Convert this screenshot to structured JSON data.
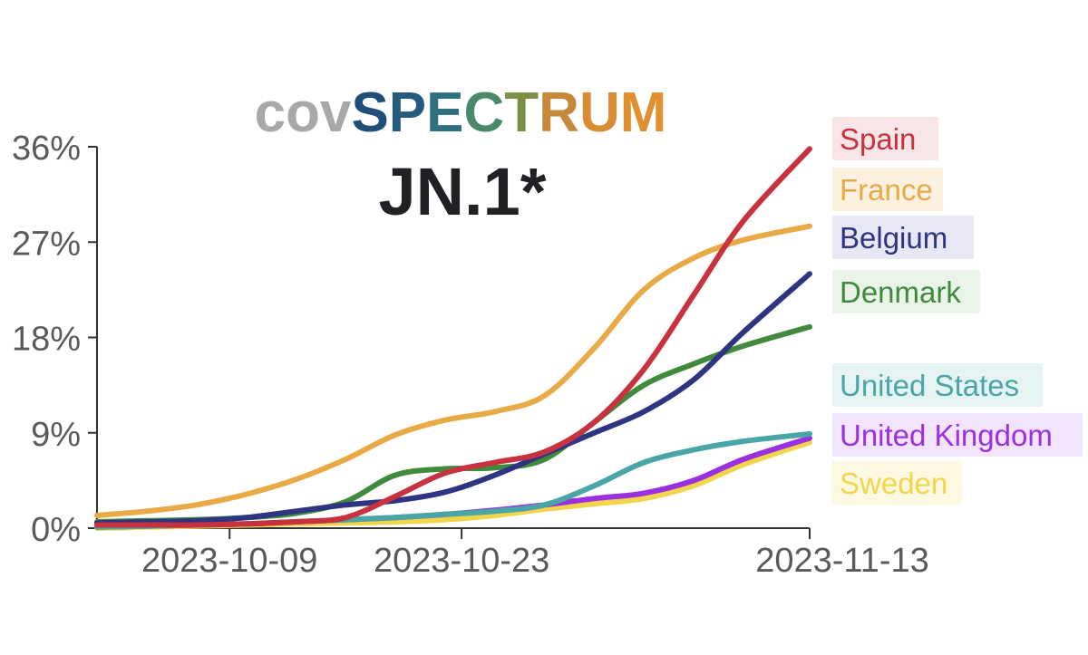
{
  "brand": {
    "parts": [
      {
        "text": "cov",
        "color": "#a8a8a8"
      },
      {
        "text": "S",
        "color": "#1f4e79"
      },
      {
        "text": "P",
        "color": "#245a7e"
      },
      {
        "text": "E",
        "color": "#2e7080"
      },
      {
        "text": "C",
        "color": "#4a8a6a"
      },
      {
        "text": "T",
        "color": "#7a8f45"
      },
      {
        "text": "R",
        "color": "#c48a3a"
      },
      {
        "text": "U",
        "color": "#d98c34"
      },
      {
        "text": "M",
        "color": "#e0902e"
      }
    ]
  },
  "chart_data": {
    "type": "line",
    "title": "JN.1*",
    "xlabel": "",
    "ylabel": "",
    "x_ticks": [
      "2023-10-09",
      "2023-10-23",
      "2023-11-13"
    ],
    "xlim": [
      "2023-10-01",
      "2023-11-13"
    ],
    "y_ticks": [
      "0%",
      "9%",
      "18%",
      "27%",
      "36%"
    ],
    "ylim": [
      0,
      36
    ],
    "grid": false,
    "legend_position": "right",
    "x": [
      "2023-10-01",
      "2023-10-04",
      "2023-10-07",
      "2023-10-10",
      "2023-10-13",
      "2023-10-16",
      "2023-10-19",
      "2023-10-22",
      "2023-10-25",
      "2023-10-28",
      "2023-10-31",
      "2023-11-03",
      "2023-11-06",
      "2023-11-09",
      "2023-11-13"
    ],
    "series": [
      {
        "name": "Spain",
        "color": "#c8323f",
        "label_bg": "#f8e5e7",
        "values": [
          0.3,
          0.3,
          0.3,
          0.4,
          0.6,
          1.0,
          3.0,
          5.2,
          6.2,
          7.2,
          10.0,
          15.0,
          22.0,
          29.0,
          35.8
        ]
      },
      {
        "name": "France",
        "color": "#e9a945",
        "label_bg": "#fcf1e0",
        "values": [
          1.2,
          1.6,
          2.2,
          3.2,
          4.6,
          6.5,
          8.8,
          10.2,
          11.0,
          12.5,
          17.0,
          22.5,
          25.5,
          27.2,
          28.5
        ]
      },
      {
        "name": "Belgium",
        "color": "#2e3481",
        "label_bg": "#e7e8f3",
        "values": [
          0.5,
          0.6,
          0.7,
          1.0,
          1.6,
          2.2,
          2.6,
          3.4,
          5.0,
          7.0,
          9.0,
          11.0,
          14.0,
          18.5,
          24.0
        ]
      },
      {
        "name": "Denmark",
        "color": "#3f8b3b",
        "label_bg": "#e9f3e8",
        "values": [
          0.6,
          0.7,
          0.8,
          1.0,
          1.4,
          2.5,
          5.0,
          5.6,
          5.7,
          6.5,
          10.0,
          13.5,
          15.5,
          17.2,
          19.0
        ]
      },
      {
        "name": "United States",
        "color": "#4aa6a6",
        "label_bg": "#e6f3f3",
        "values": [
          0.1,
          0.2,
          0.3,
          0.4,
          0.6,
          0.8,
          1.0,
          1.3,
          1.6,
          2.2,
          4.0,
          6.2,
          7.4,
          8.2,
          8.9
        ]
      },
      {
        "name": "United Kingdom",
        "color": "#9b30e2",
        "label_bg": "#f1e4fc",
        "values": [
          0.1,
          0.2,
          0.3,
          0.4,
          0.6,
          0.8,
          1.0,
          1.3,
          1.7,
          2.2,
          2.8,
          3.3,
          4.5,
          6.5,
          8.5
        ]
      },
      {
        "name": "Sweden",
        "color": "#f2d54a",
        "label_bg": "#fdf8e2",
        "values": [
          0.0,
          0.1,
          0.2,
          0.3,
          0.4,
          0.5,
          0.6,
          0.8,
          1.2,
          1.8,
          2.3,
          2.8,
          4.0,
          6.0,
          8.1
        ]
      }
    ]
  }
}
